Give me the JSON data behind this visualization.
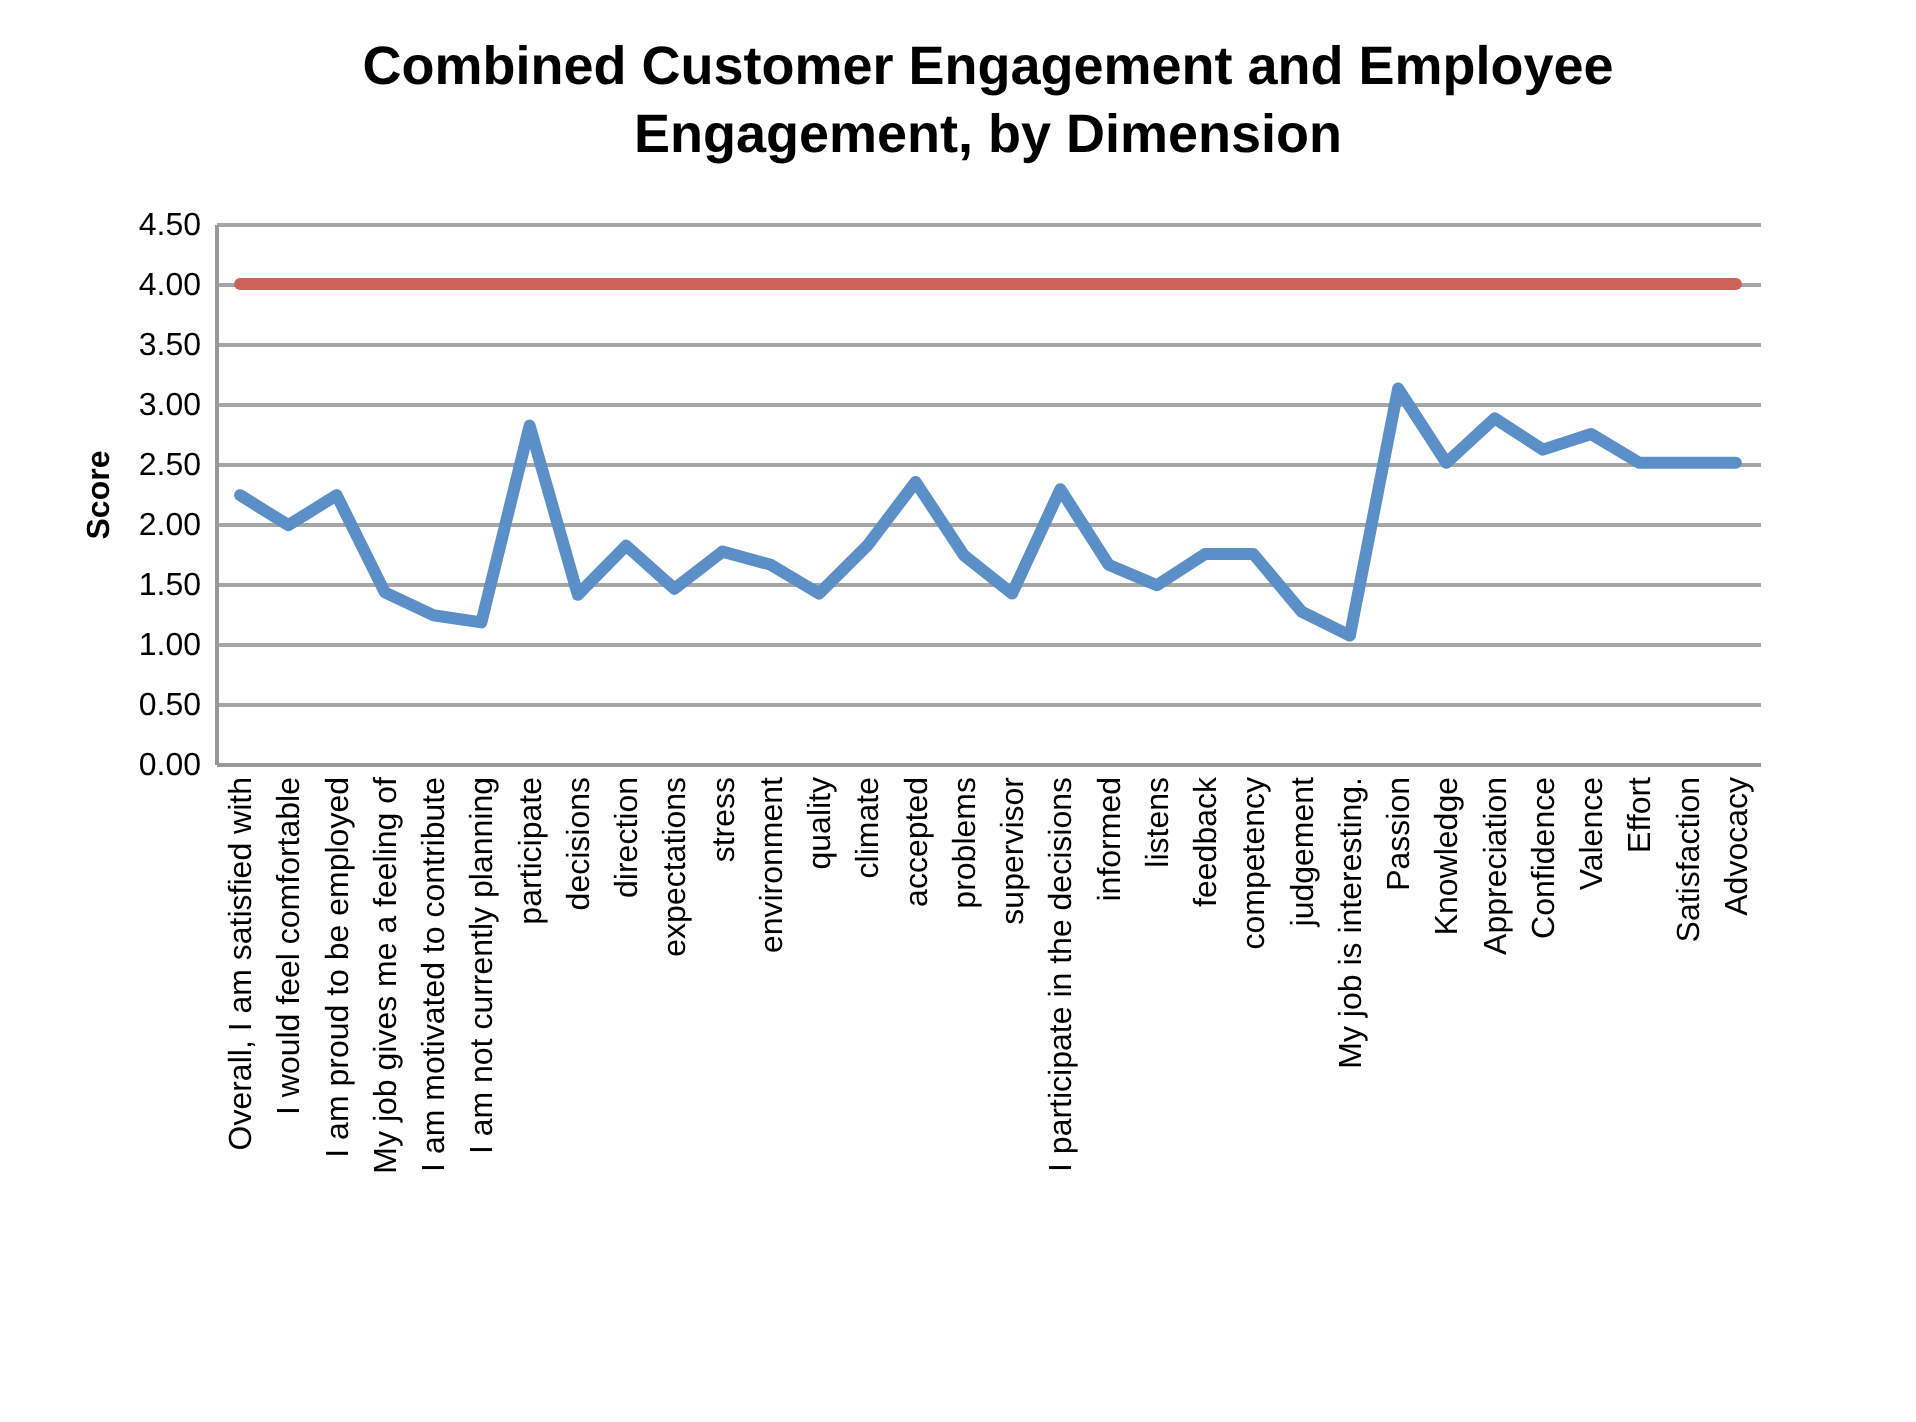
{
  "chart_data": {
    "type": "line",
    "title": "Combined Customer Engagement and Employee Engagement, by Dimension",
    "ylabel": "Score",
    "categories": [
      "Overall, I am satisfied with",
      "I would feel comfortable",
      "I am proud to be employed",
      "My job gives me a feeling of",
      "I am motivated to contribute",
      "I am not currently planning",
      "participate",
      "decisions",
      "direction",
      "expectations",
      "stress",
      "environment",
      "quality",
      "climate",
      "accepted",
      "problems",
      "supervisor",
      "I participate in the decisions",
      "informed",
      "listens",
      "feedback",
      "competency",
      "judgement",
      "My job is interesting.",
      "Passion",
      "Knowledge",
      "Appreciation",
      "Confidence",
      "Valence",
      "Effort",
      "Satisfaction",
      "Advocacy"
    ],
    "series": [
      {
        "color": "#cc625a",
        "values": [
          4,
          4,
          4,
          4,
          4,
          4,
          4,
          4,
          4,
          4,
          4,
          4,
          4,
          4,
          4,
          4,
          4,
          4,
          4,
          4,
          4,
          4,
          4,
          4,
          4,
          4,
          4,
          4,
          4,
          4,
          4,
          4
        ]
      },
      {
        "color": "#5b8fc7",
        "values": [
          2.24,
          1.99,
          2.24,
          1.43,
          1.24,
          1.18,
          2.82,
          1.41,
          1.82,
          1.46,
          1.77,
          1.66,
          1.42,
          1.82,
          2.35,
          1.74,
          1.42,
          2.29,
          1.66,
          1.49,
          1.75,
          1.75,
          1.27,
          1.07,
          3.13,
          2.51,
          2.88,
          2.62,
          2.75,
          2.51,
          2.51,
          2.51
        ]
      }
    ],
    "ylim": [
      0,
      4.5
    ],
    "yticks": [
      {
        "value": 0,
        "label": "0.00"
      },
      {
        "value": 0.5,
        "label": "0.50"
      },
      {
        "value": 1,
        "label": "1.00"
      },
      {
        "value": 1.5,
        "label": "1.50"
      },
      {
        "value": 2,
        "label": "2.00"
      },
      {
        "value": 2.5,
        "label": "2.50"
      },
      {
        "value": 3,
        "label": "3.00"
      },
      {
        "value": 3.5,
        "label": "3.50"
      },
      {
        "value": 4,
        "label": "4.00"
      },
      {
        "value": 4.5,
        "label": "4.50"
      }
    ],
    "grid": "y",
    "legend": false,
    "marker": "none",
    "line_style": "solid"
  }
}
